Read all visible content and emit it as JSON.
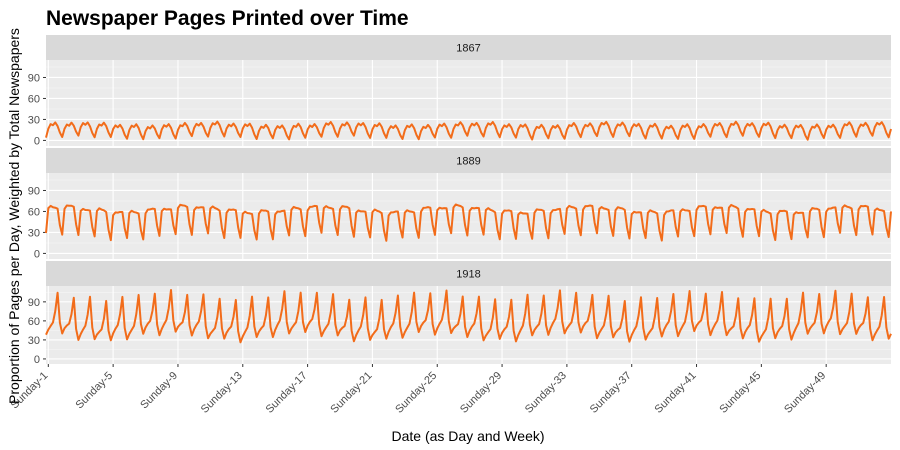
{
  "chart_data": {
    "type": "line",
    "title": "Newspaper Pages Printed over Time",
    "xlabel": "Date (as Day and Week)",
    "ylabel": "Proportion of Pages per Day, Weighted by Total Newspapers",
    "x_tick_labels": [
      "Sunday-1",
      "Sunday-5",
      "Sunday-9",
      "Sunday-13",
      "Sunday-17",
      "Sunday-21",
      "Sunday-25",
      "Sunday-29",
      "Sunday-33",
      "Sunday-37",
      "Sunday-41",
      "Sunday-45",
      "Sunday-49"
    ],
    "x_tick_positions": [
      1,
      29,
      57,
      85,
      113,
      141,
      169,
      197,
      225,
      253,
      281,
      309,
      337
    ],
    "xlim": [
      0,
      365
    ],
    "line_color": "#F26C1A",
    "panels": [
      {
        "label": "1867",
        "ylim": [
          -8,
          115
        ],
        "y_ticks": [
          0,
          30,
          60,
          90
        ],
        "weekly_pattern": [
          4,
          16,
          22,
          20,
          24,
          19,
          10
        ],
        "drift_amplitude": 2
      },
      {
        "label": "1889",
        "ylim": [
          -8,
          115
        ],
        "y_ticks": [
          0,
          30,
          60,
          90
        ],
        "weekly_pattern": [
          24,
          60,
          64,
          63,
          63,
          62,
          38
        ],
        "drift_amplitude": 4
      },
      {
        "label": "1918",
        "ylim": [
          -8,
          115
        ],
        "y_ticks": [
          0,
          30,
          60,
          90
        ],
        "weekly_pattern": [
          35,
          44,
          50,
          55,
          72,
          100,
          52
        ],
        "drift_amplitude": 6
      }
    ]
  }
}
